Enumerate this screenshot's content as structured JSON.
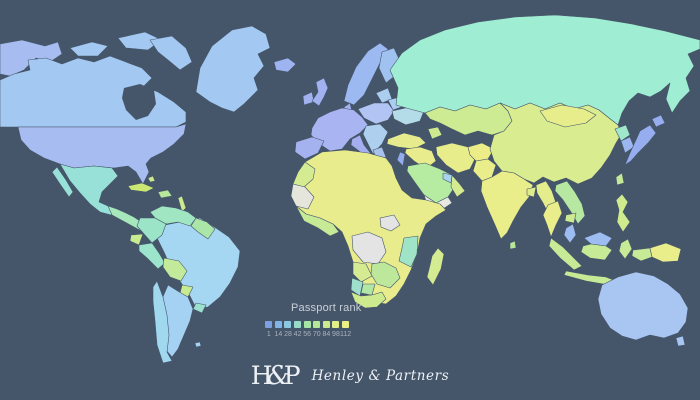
{
  "map": {
    "ocean": "#46566a",
    "regions": {
      "canada": "#a3c9f3",
      "greenland": "#a3c9f3",
      "alaska": "#a7bdf2",
      "usa": "#a7bdf2",
      "mexico": "#98e1d8",
      "central_america": "#a6e7bc",
      "cuba": "#cbe972",
      "hispaniola": "#b8e89a",
      "bahamas": "#cde98e",
      "antilles": "#cde98e",
      "venezuela": "#a0e6c2",
      "colombia": "#9ce4c8",
      "guyanas": "#ace5a8",
      "ecuador": "#c8ea90",
      "peru": "#9ce4cc",
      "brazil": "#a5d7f2",
      "bolivia": "#c2ea9a",
      "paraguay": "#c8ea90",
      "uruguay": "#9ce0d0",
      "argentina": "#a5d2f2",
      "chile": "#a0d8f0",
      "falklands": "#a5d2f2",
      "iceland": "#9db4f0",
      "ireland": "#a2b2f0",
      "uk": "#a2b2f0",
      "scandinavia": "#9db9f2",
      "finland": "#a0c2f0",
      "denmark": "#a2b2f0",
      "baltics": "#aacdf0",
      "belarus": "#aacdf0",
      "west_europe": "#a8b5f2",
      "iberia": "#a5b2f0",
      "italy": "#a5aff0",
      "central_europe": "#b2c4f4",
      "balkans": "#aed0ee",
      "greece": "#a8c2ee",
      "ukraine": "#b4dce8",
      "russia": "#9fedd2",
      "kazakhstan": "#cdeb92",
      "caucasus": "#cdea8f",
      "turkey": "#e6ec8e",
      "syria_iraq": "#e9ec8c",
      "israel": "#93acee",
      "saudi_arabia": "#b6eca2",
      "yemen": "#e9e9e2",
      "oman": "#d4eb90",
      "uae_qatar": "#a8d4f0",
      "iran": "#e7ed8a",
      "afghanistan": "#eced86",
      "pakistan": "#e9ed8a",
      "india": "#e9ed8a",
      "sri_lanka": "#b8e89a",
      "bangladesh": "#dfec8c",
      "myanmar": "#e4ed8c",
      "thailand": "#e9ed8a",
      "laos_vietnam": "#b6e8a2",
      "cambodia": "#cdea90",
      "malaysia": "#9cbcf2",
      "indonesia": "#c6ea96",
      "papua_new_guinea": "#e9ed8a",
      "philippines": "#cfeb8e",
      "taiwan": "#c4e998",
      "china": "#d9ec90",
      "mongolia": "#e6ed8a",
      "north_korea": "#9fe8cc",
      "south_korea": "#9cb6f0",
      "japan": "#96aef0",
      "africa_sahara": "#e9ec8c",
      "morocco": "#d4eb92",
      "mauritania": "#e5e5dc",
      "west_africa": "#c6ea96",
      "drc": "#e4e4e4",
      "south_sudan": "#e4e4e4",
      "kenya_tanzania": "#9fe4c6",
      "angola": "#d4eb92",
      "zambia_zimbabwe": "#bde89c",
      "namibia": "#9fe0cc",
      "botswana": "#b2e6a4",
      "south_africa": "#cdea8f",
      "madagascar": "#d4eb92",
      "australia": "#a9c6f3",
      "tasmania": "#a9c6f3"
    }
  },
  "legend": {
    "title": "Passport rank",
    "stops": [
      {
        "value": "1",
        "color": "#7da0e1"
      },
      {
        "value": "14",
        "color": "#82b4e6"
      },
      {
        "value": "28",
        "color": "#8cc8e1"
      },
      {
        "value": "42",
        "color": "#96dcc8"
      },
      {
        "value": "56",
        "color": "#a5e6a5"
      },
      {
        "value": "70",
        "color": "#b4e896"
      },
      {
        "value": "84",
        "color": "#cdeb8c"
      },
      {
        "value": "98",
        "color": "#e1ee87"
      },
      {
        "value": "112",
        "color": "#ecee84"
      }
    ]
  },
  "footer": {
    "monogram_h": "H",
    "monogram_amp": "&",
    "monogram_p": "P",
    "brand": "Henley & Partners"
  }
}
